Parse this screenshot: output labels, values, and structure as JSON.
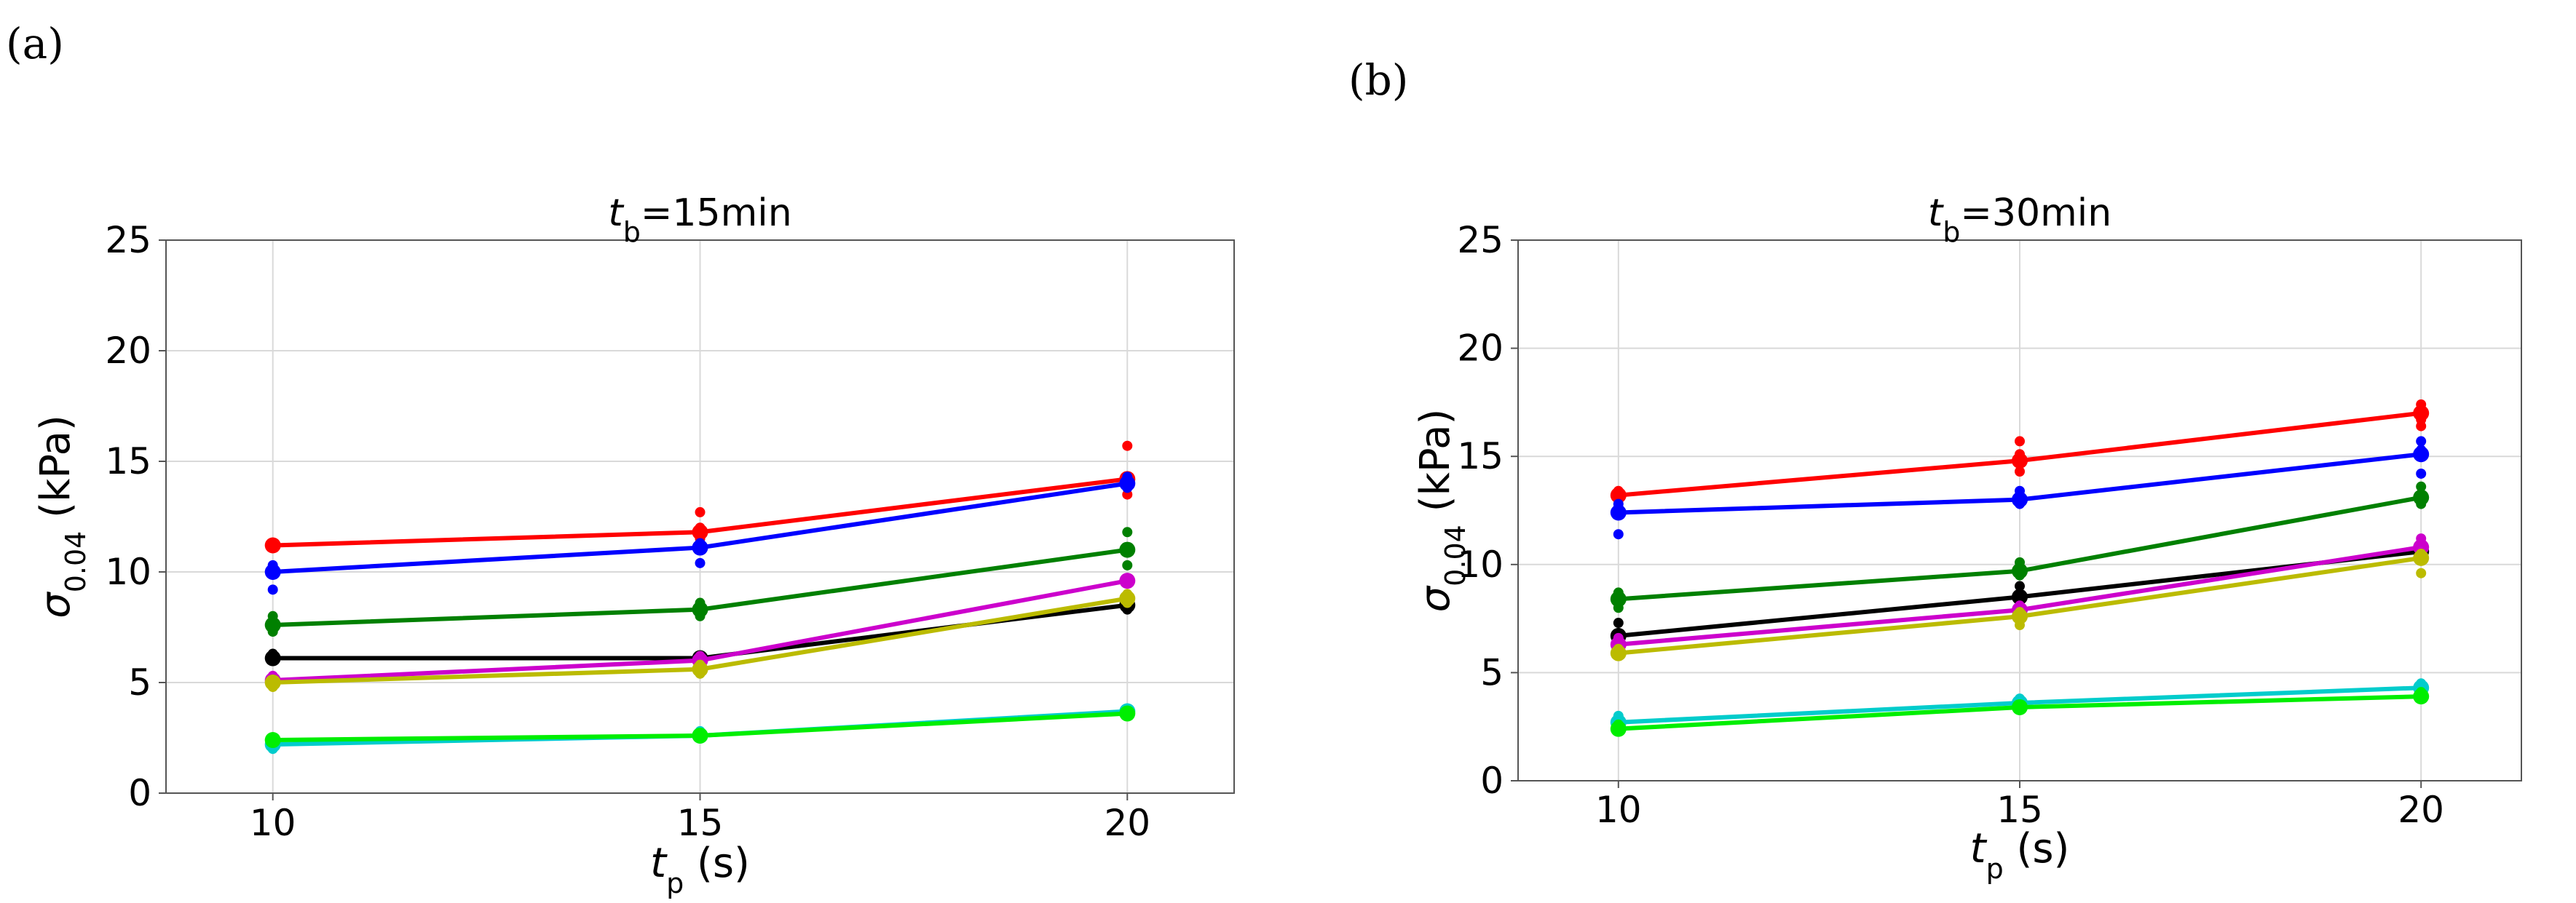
{
  "panels": {
    "a": "(a)",
    "b": "(b)"
  },
  "chart_data": [
    {
      "type": "line",
      "panel": "(a)",
      "title": {
        "var": "t",
        "sub": "b",
        "rest": "=15min"
      },
      "xlabel": {
        "var": "t",
        "sub": "p",
        "rest": " (s)"
      },
      "ylabel": {
        "var": "σ",
        "sub": "0.04",
        "rest": " (kPa)"
      },
      "x": [
        10,
        15,
        20
      ],
      "xticks": [
        10,
        15,
        20
      ],
      "yticks": [
        0,
        5,
        10,
        15,
        20,
        25
      ],
      "xlim": [
        8.75,
        21.25
      ],
      "ylim": [
        0,
        25
      ],
      "grid": true,
      "series": [
        {
          "color": "#ff0000",
          "values": [
            11.2,
            11.8,
            14.2
          ],
          "scatter": [
            [
              11.3,
              11.1
            ],
            [
              12.7,
              12.0,
              11.5
            ],
            [
              15.7,
              14.2,
              13.5
            ]
          ]
        },
        {
          "color": "#0000ff",
          "values": [
            10.0,
            11.1,
            14.0
          ],
          "scatter": [
            [
              10.3,
              9.2,
              10.0
            ],
            [
              11.3,
              10.4,
              11.0
            ],
            [
              14.3,
              13.8
            ]
          ]
        },
        {
          "color": "#008000",
          "values": [
            7.6,
            8.3,
            11.0
          ],
          "scatter": [
            [
              8.0,
              7.3,
              7.6
            ],
            [
              8.6,
              8.0,
              8.3
            ],
            [
              11.8,
              10.3,
              11.0
            ]
          ]
        },
        {
          "color": "#000000",
          "values": [
            6.1,
            6.1,
            8.5
          ],
          "scatter": [
            [
              6.3,
              6.0
            ],
            [
              6.2,
              6.0
            ],
            [
              8.7,
              8.3
            ]
          ]
        },
        {
          "color": "#cc00cc",
          "values": [
            5.1,
            6.0,
            9.6
          ],
          "scatter": [
            [
              5.3,
              4.9
            ],
            [
              6.2,
              5.9
            ],
            [
              9.7,
              9.5
            ]
          ]
        },
        {
          "color": "#bbbb00",
          "values": [
            5.0,
            5.6,
            8.8
          ],
          "scatter": [
            [
              5.1,
              4.8
            ],
            [
              5.8,
              5.4
            ],
            [
              9.0,
              8.6
            ]
          ]
        },
        {
          "color": "#00cccc",
          "values": [
            2.2,
            2.6,
            3.7
          ],
          "scatter": [
            [
              2.0,
              2.3
            ],
            [
              2.8,
              2.5
            ],
            [
              3.8,
              3.6
            ]
          ]
        },
        {
          "color": "#00ee00",
          "values": [
            2.4,
            2.6,
            3.6
          ],
          "scatter": [
            [
              2.5,
              2.3
            ],
            [
              2.7,
              2.5
            ],
            [
              3.7,
              3.5
            ]
          ]
        }
      ]
    },
    {
      "type": "line",
      "panel": "(b)",
      "title": {
        "var": "t",
        "sub": "b",
        "rest": "=30min"
      },
      "xlabel": {
        "var": "t",
        "sub": "p",
        "rest": " (s)"
      },
      "ylabel": {
        "var": "σ",
        "sub": "0.04",
        "rest": " (kPa)"
      },
      "x": [
        10,
        15,
        20
      ],
      "xticks": [
        10,
        15,
        20
      ],
      "yticks": [
        0,
        5,
        10,
        15,
        20,
        25
      ],
      "xlim": [
        8.75,
        21.25
      ],
      "ylim": [
        0,
        25
      ],
      "grid": true,
      "series": [
        {
          "color": "#ff0000",
          "values": [
            13.2,
            14.8,
            17.0
          ],
          "scatter": [
            [
              13.4,
              13.1
            ],
            [
              15.7,
              15.1,
              14.3
            ],
            [
              17.4,
              16.7,
              16.4
            ]
          ]
        },
        {
          "color": "#0000ff",
          "values": [
            12.4,
            13.0,
            15.1
          ],
          "scatter": [
            [
              12.8,
              12.3,
              11.4
            ],
            [
              13.4,
              12.8
            ],
            [
              15.7,
              15.3,
              14.2
            ]
          ]
        },
        {
          "color": "#008000",
          "values": [
            8.4,
            9.7,
            13.1
          ],
          "scatter": [
            [
              8.7,
              8.0
            ],
            [
              10.1,
              9.5
            ],
            [
              13.6,
              12.8
            ]
          ]
        },
        {
          "color": "#000000",
          "values": [
            6.7,
            8.5,
            10.6
          ],
          "scatter": [
            [
              7.3,
              6.6
            ],
            [
              9.0,
              8.3
            ],
            [
              10.9,
              10.4
            ]
          ]
        },
        {
          "color": "#cc00cc",
          "values": [
            6.3,
            7.9,
            10.8
          ],
          "scatter": [
            [
              6.6,
              6.1
            ],
            [
              8.1,
              7.7
            ],
            [
              11.2,
              10.6
            ]
          ]
        },
        {
          "color": "#bbbb00",
          "values": [
            5.9,
            7.6,
            10.3
          ],
          "scatter": [
            [
              6.1,
              5.8
            ],
            [
              7.8,
              7.2
            ],
            [
              10.5,
              9.6
            ]
          ]
        },
        {
          "color": "#00cccc",
          "values": [
            2.7,
            3.6,
            4.3
          ],
          "scatter": [
            [
              3.0,
              2.6
            ],
            [
              3.8,
              3.5
            ],
            [
              4.5,
              4.2
            ]
          ]
        },
        {
          "color": "#00ee00",
          "values": [
            2.4,
            3.4,
            3.9
          ],
          "scatter": [
            [
              2.6,
              2.3
            ],
            [
              3.5,
              3.3
            ],
            [
              4.1,
              3.8
            ]
          ]
        }
      ]
    }
  ]
}
